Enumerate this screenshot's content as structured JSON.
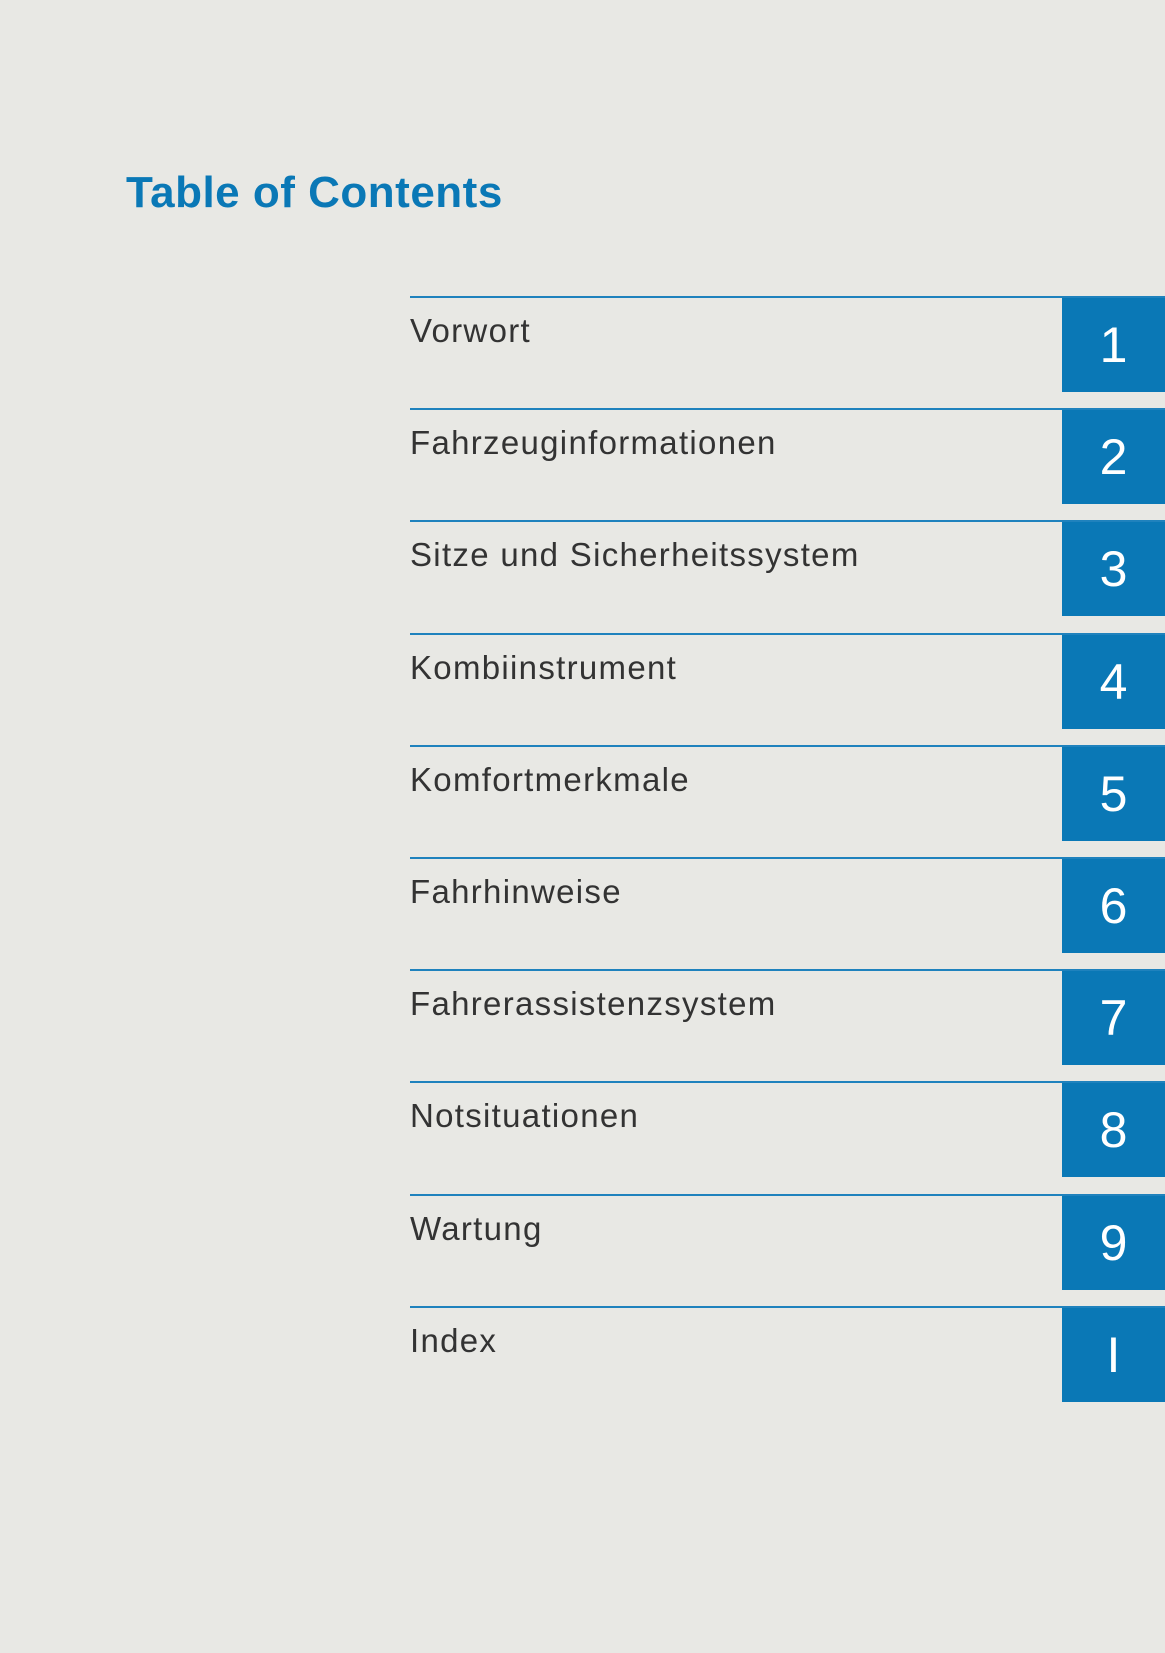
{
  "title": "Table of Contents",
  "accent_color": "#0a78b6",
  "entries": [
    {
      "label": "Vorwort",
      "tab": "1"
    },
    {
      "label": "Fahrzeuginformationen",
      "tab": "2"
    },
    {
      "label": "Sitze und Sicherheitssystem",
      "tab": "3"
    },
    {
      "label": "Kombiinstrument",
      "tab": "4"
    },
    {
      "label": "Komfortmerkmale",
      "tab": "5"
    },
    {
      "label": "Fahrhinweise",
      "tab": "6"
    },
    {
      "label": "Fahrerassistenzsystem",
      "tab": "7"
    },
    {
      "label": "Notsituationen",
      "tab": "8"
    },
    {
      "label": "Wartung",
      "tab": "9"
    },
    {
      "label": "Index",
      "tab": "I"
    }
  ]
}
